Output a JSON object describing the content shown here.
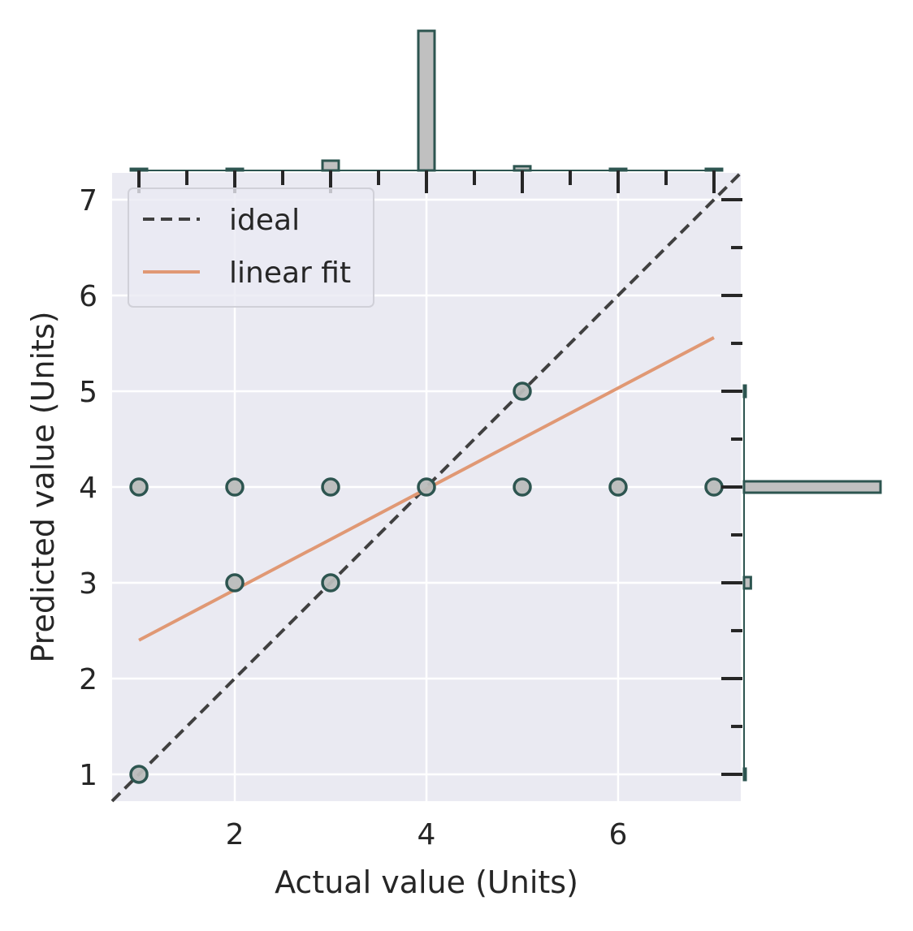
{
  "chart_data": {
    "type": "scatter",
    "xlabel": "Actual value (Units)",
    "ylabel": "Predicted value (Units)",
    "xlim": [
      0.72,
      7.28
    ],
    "ylim": [
      0.72,
      7.28
    ],
    "x_ticks": [
      2,
      4,
      6
    ],
    "y_ticks": [
      1,
      2,
      3,
      4,
      5,
      6,
      7
    ],
    "grid": true,
    "legend_position": "top-left",
    "legend": [
      {
        "label": "ideal",
        "style": "dashed",
        "color": "#404040"
      },
      {
        "label": "linear fit",
        "style": "solid",
        "color": "#e09874"
      }
    ],
    "points": [
      {
        "x": 1,
        "y": 1
      },
      {
        "x": 1,
        "y": 4
      },
      {
        "x": 2,
        "y": 3
      },
      {
        "x": 2,
        "y": 4
      },
      {
        "x": 3,
        "y": 3
      },
      {
        "x": 3,
        "y": 4
      },
      {
        "x": 4,
        "y": 4
      },
      {
        "x": 5,
        "y": 4
      },
      {
        "x": 5,
        "y": 5
      },
      {
        "x": 6,
        "y": 4
      },
      {
        "x": 7,
        "y": 4
      }
    ],
    "ideal_line": {
      "x": [
        0.72,
        7.28
      ],
      "y": [
        0.72,
        7.28
      ]
    },
    "linear_fit": {
      "x": [
        1,
        7
      ],
      "y": [
        2.4,
        5.56
      ]
    },
    "marginal_x": {
      "bins": [
        1,
        2,
        3,
        4,
        5,
        6,
        7
      ],
      "relative_heights": [
        0.01,
        0.01,
        0.07,
        1.0,
        0.03,
        0.005,
        0.005
      ]
    },
    "marginal_y": {
      "bins": [
        1,
        3,
        4,
        5
      ],
      "relative_heights": [
        0.01,
        0.05,
        1.0,
        0.01
      ]
    },
    "colors": {
      "plot_background": "#eaeaf2",
      "grid": "#ffffff",
      "marker_face": "#b9bcbb",
      "marker_edge": "#2d5550",
      "hist_fill": "#c0c0c0",
      "hist_edge": "#2d5550",
      "ideal": "#404040",
      "fit": "#e09874"
    }
  }
}
